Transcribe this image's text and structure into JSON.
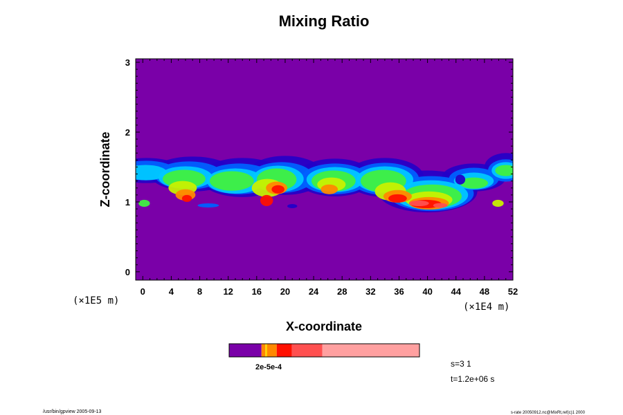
{
  "chart_data": {
    "type": "heatmap",
    "title": "Mixing Ratio",
    "xlabel": "X-coordinate",
    "ylabel": "Z-coordinate",
    "x_scale_note": "(×1E4 m)",
    "y_scale_note": "(×1E5 m)",
    "x_ticks": [
      "0",
      "4",
      "8",
      "12",
      "16",
      "20",
      "24",
      "28",
      "32",
      "36",
      "40",
      "44",
      "48",
      "52"
    ],
    "y_ticks": [
      "0",
      "1",
      "2",
      "3"
    ],
    "xlim": [
      -1,
      52
    ],
    "ylim": [
      -0.12,
      3.05
    ],
    "background_color": "#7a00a8",
    "colorscale": [
      "#7a00a8",
      "#2200c8",
      "#0060ff",
      "#00c8ff",
      "#00e8b0",
      "#40f040",
      "#c8f000",
      "#ffd000",
      "#ff8800",
      "#ff1000",
      "#ff5050",
      "#ffa0a0"
    ],
    "plume_band": {
      "z_bottom_approx": 0.95,
      "z_top_approx": 1.65
    },
    "colorbar": {
      "colors": [
        "#7a00a8",
        "#ff8800",
        "#ffd000",
        "#ff8800",
        "#ff1000",
        "#ff5050",
        "#ffa0a0"
      ],
      "fractions": [
        0.17,
        0.02,
        0.01,
        0.05,
        0.08,
        0.16,
        0.51
      ],
      "label": "2e-5e-4"
    },
    "annotations": {
      "step": "s=3 1",
      "time": "t=1.2e+06 s"
    }
  },
  "footer": {
    "left": "/usr/bin/gpview 2005-09-13",
    "right": "s-rate 20050912.nc@MixRt,ref(c)1 2000"
  }
}
